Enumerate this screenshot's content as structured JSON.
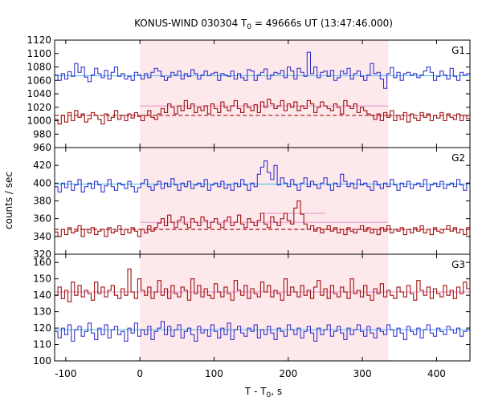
{
  "chart_data": {
    "type": "line",
    "title_prefix": "KONUS-WIND 030304 T",
    "title_sub": "0",
    "title_suffix": " = 49666s UT (13:47:46.000)",
    "xlabel_prefix": "T - T",
    "xlabel_sub": "0",
    "xlabel_suffix": ", s",
    "ylabel": "counts / sec",
    "xlim": [
      -115,
      445
    ],
    "xticks": [
      -100,
      0,
      100,
      200,
      300,
      400
    ],
    "highlight_interval": [
      0,
      335
    ],
    "colors": {
      "blue_series": "#2323c8",
      "red_series": "#a01010",
      "cyan_line": "#40b8e8",
      "pink_line": "#e890c8",
      "dashed_line": "#a01010",
      "highlight": "#fde8ec"
    },
    "panels": [
      {
        "name": "G1",
        "ylim": [
          960,
          1120
        ],
        "yticks": [
          960,
          980,
          1000,
          1020,
          1040,
          1060,
          1080,
          1100,
          1120
        ],
        "blue_level": 1067,
        "red_bg_level": 1008,
        "red_pulse_level": 1022,
        "blue_values": [
          1068,
          1060,
          1070,
          1062,
          1073,
          1066,
          1085,
          1072,
          1080,
          1065,
          1058,
          1068,
          1078,
          1070,
          1064,
          1075,
          1062,
          1072,
          1080,
          1066,
          1070,
          1062,
          1066,
          1060,
          1072,
          1068,
          1062,
          1070,
          1064,
          1072,
          1078,
          1074,
          1066,
          1060,
          1065,
          1072,
          1068,
          1074,
          1062,
          1070,
          1066,
          1076,
          1070,
          1062,
          1068,
          1074,
          1067,
          1070,
          1072,
          1060,
          1070,
          1068,
          1066,
          1074,
          1062,
          1070,
          1064,
          1060,
          1076,
          1074,
          1060,
          1068,
          1072,
          1077,
          1062,
          1068,
          1072,
          1070,
          1075,
          1064,
          1080,
          1074,
          1062,
          1078,
          1072,
          1066,
          1102,
          1070,
          1080,
          1064,
          1072,
          1074,
          1066,
          1075,
          1060,
          1064,
          1074,
          1070,
          1078,
          1062,
          1070,
          1074,
          1066,
          1060,
          1068,
          1085,
          1070,
          1072,
          1062,
          1048,
          1070,
          1079,
          1064,
          1072,
          1060,
          1070,
          1072,
          1068,
          1070,
          1064,
          1068,
          1074,
          1080,
          1072,
          1060,
          1066,
          1074,
          1068,
          1062,
          1078,
          1066,
          1060,
          1072,
          1068,
          1070
        ],
        "red_values": [
          1002,
          995,
          1008,
          998,
          1012,
          1000,
          1015,
          1005,
          1010,
          998,
          1003,
          1012,
          1008,
          1002,
          995,
          1010,
          1000,
          1005,
          1015,
          1002,
          1008,
          1000,
          1010,
          1004,
          1012,
          1006,
          1000,
          1008,
          1015,
          1005,
          1002,
          1010,
          1018,
          1012,
          1025,
          1020,
          1010,
          1022,
          1015,
          1030,
          1018,
          1025,
          1012,
          1020,
          1015,
          1022,
          1010,
          1025,
          1018,
          1012,
          1028,
          1020,
          1015,
          1022,
          1030,
          1018,
          1012,
          1025,
          1020,
          1015,
          1024,
          1012,
          1028,
          1020,
          1032,
          1025,
          1018,
          1022,
          1030,
          1015,
          1025,
          1020,
          1028,
          1015,
          1022,
          1018,
          1030,
          1025,
          1012,
          1020,
          1028,
          1022,
          1018,
          1015,
          1025,
          1020,
          1010,
          1030,
          1022,
          1018,
          1025,
          1012,
          1020,
          1015,
          1010,
          1008,
          1002,
          1010,
          1000,
          1012,
          1005,
          1015,
          1000,
          1008,
          1002,
          1012,
          998,
          1010,
          1004,
          1000,
          1012,
          1005,
          1010,
          1000,
          1008,
          1004,
          1012,
          1000,
          1010,
          1005,
          1002,
          1010,
          1000,
          1008,
          1003
        ]
      },
      {
        "name": "G2",
        "ylim": [
          320,
          440
        ],
        "yticks": [
          320,
          340,
          360,
          380,
          400,
          420
        ],
        "blue_level": 399,
        "red_bg_level": 348,
        "red_pulse_level": 356,
        "red_peak_level": 366,
        "blue_values": [
          396,
          390,
          400,
          395,
          402,
          392,
          398,
          404,
          390,
          396,
          400,
          394,
          402,
          398,
          390,
          397,
          404,
          396,
          392,
          400,
          398,
          394,
          402,
          396,
          390,
          395,
          400,
          404,
          396,
          392,
          398,
          402,
          394,
          400,
          396,
          405,
          398,
          392,
          400,
          396,
          402,
          394,
          398,
          400,
          396,
          404,
          392,
          398,
          400,
          396,
          402,
          394,
          398,
          392,
          400,
          396,
          404,
          398,
          392,
          400,
          396,
          410,
          418,
          425,
          412,
          404,
          420,
          398,
          406,
          400,
          396,
          404,
          398,
          392,
          400,
          406,
          396,
          402,
          398,
          394,
          400,
          406,
          398,
          392,
          400,
          396,
          410,
          402,
          396,
          400,
          394,
          404,
          398,
          400,
          396,
          392,
          402,
          398,
          394,
          400,
          396,
          404,
          398,
          392,
          400,
          396,
          402,
          394,
          398,
          400,
          396,
          404,
          392,
          398,
          400,
          396,
          402,
          394,
          398,
          400,
          396,
          404,
          398,
          392,
          400
        ],
        "red_values": [
          345,
          340,
          348,
          342,
          350,
          344,
          346,
          352,
          340,
          348,
          344,
          350,
          342,
          346,
          348,
          340,
          350,
          344,
          346,
          352,
          342,
          348,
          344,
          350,
          346,
          340,
          348,
          344,
          352,
          346,
          350,
          355,
          360,
          352,
          364,
          356,
          350,
          358,
          362,
          354,
          350,
          360,
          356,
          352,
          362,
          358,
          350,
          356,
          360,
          354,
          350,
          358,
          362,
          352,
          356,
          364,
          354,
          350,
          360,
          356,
          352,
          358,
          366,
          354,
          350,
          362,
          356,
          352,
          360,
          366,
          358,
          354,
          372,
          380,
          365,
          354,
          348,
          352,
          346,
          350,
          344,
          348,
          352,
          346,
          350,
          344,
          348,
          342,
          350,
          346,
          344,
          348,
          352,
          346,
          350,
          344,
          348,
          342,
          350,
          346,
          352,
          344,
          348,
          346,
          350,
          342,
          348,
          344,
          350,
          346,
          352,
          344,
          348,
          342,
          350,
          346,
          344,
          348,
          352,
          346,
          350,
          344,
          348,
          342,
          350
        ]
      },
      {
        "name": "G3",
        "ylim": [
          100,
          165
        ],
        "yticks": [
          100,
          110,
          120,
          130,
          140,
          150,
          160
        ],
        "red_level": 142,
        "blue_level": 119,
        "red_values": [
          140,
          145,
          138,
          143,
          136,
          148,
          140,
          146,
          139,
          143,
          141,
          137,
          148,
          141,
          145,
          139,
          143,
          146,
          140,
          138,
          144,
          140,
          156,
          142,
          138,
          150,
          143,
          140,
          145,
          138,
          142,
          149,
          140,
          144,
          138,
          146,
          141,
          139,
          145,
          143,
          137,
          150,
          141,
          146,
          139,
          144,
          140,
          138,
          147,
          142,
          139,
          145,
          141,
          137,
          149,
          143,
          140,
          146,
          138,
          144,
          141,
          139,
          148,
          142,
          146,
          139,
          143,
          141,
          137,
          150,
          140,
          145,
          142,
          139,
          146,
          140,
          143,
          138,
          145,
          149,
          140,
          144,
          138,
          146,
          141,
          139,
          145,
          142,
          138,
          150,
          141,
          143,
          139,
          146,
          140,
          137,
          144,
          141,
          147,
          139,
          143,
          140,
          138,
          145,
          142,
          139,
          146,
          141,
          137,
          149,
          143,
          140,
          145,
          138,
          144,
          141,
          139,
          146,
          140,
          143,
          138,
          145,
          141,
          148,
          144
        ],
        "blue_values": [
          118,
          114,
          120,
          116,
          122,
          112,
          119,
          121,
          115,
          118,
          123,
          117,
          113,
          120,
          116,
          122,
          114,
          119,
          121,
          116,
          118,
          112,
          120,
          117,
          123,
          115,
          119,
          116,
          121,
          113,
          118,
          120,
          124,
          116,
          121,
          115,
          119,
          122,
          114,
          118,
          120,
          116,
          112,
          121,
          117,
          119,
          115,
          122,
          118,
          114,
          120,
          116,
          123,
          113,
          119,
          121,
          117,
          115,
          120,
          118,
          122,
          114,
          119,
          116,
          121,
          117,
          113,
          120,
          118,
          115,
          122,
          119,
          116,
          120,
          114,
          118,
          121,
          117,
          112,
          120,
          116,
          119,
          122,
          115,
          118,
          121,
          117,
          113,
          120,
          116,
          119,
          122,
          118,
          115,
          121,
          117,
          114,
          120,
          118,
          116,
          122,
          119,
          115,
          120,
          117,
          113,
          121,
          118,
          116,
          120,
          114,
          119,
          122,
          117,
          115,
          120,
          118,
          116,
          121,
          119,
          117,
          120,
          115,
          118,
          119
        ]
      }
    ]
  }
}
